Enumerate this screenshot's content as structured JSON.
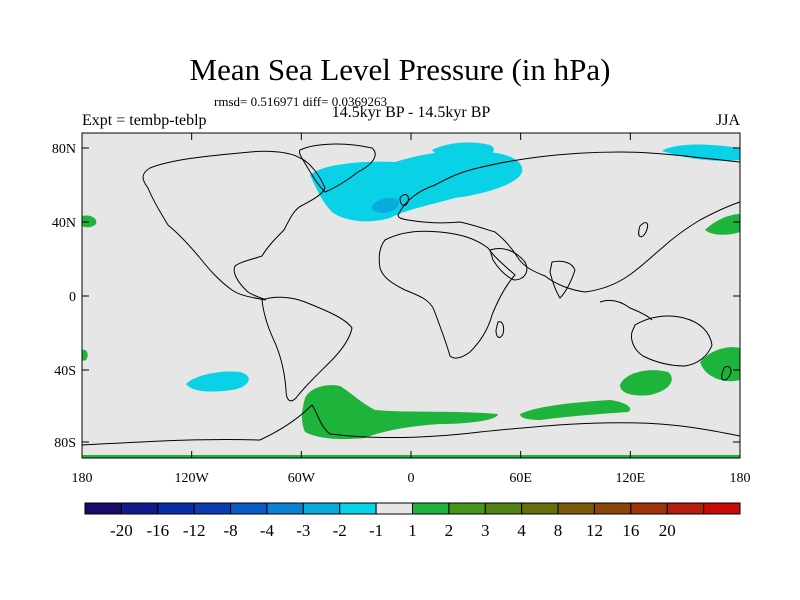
{
  "header": {
    "title": "Mean Sea Level Pressure (in hPa)",
    "stats": "rmsd= 0.516971 diff= 0.0369263",
    "subtitle": "14.5kyr BP - 14.5kyr BP",
    "experiment": "Expt = tembp-teblp",
    "season": "JJA"
  },
  "map": {
    "background_color": "#e6e6e6",
    "coast_color": "#000000",
    "y_ticks": [
      "80N",
      "40N",
      "0",
      "40S",
      "80S"
    ],
    "x_ticks": [
      "180",
      "120W",
      "60W",
      "0",
      "60E",
      "120E",
      "180"
    ]
  },
  "colorbar": {
    "colors": [
      "#1a0a6a",
      "#141a8c",
      "#0a2ca6",
      "#0a3cb4",
      "#0a5ac8",
      "#0a82d2",
      "#0aaadc",
      "#0ad2e6",
      "#e6e6e6",
      "#1eb43c",
      "#46961e",
      "#508214",
      "#646e0a",
      "#7a5a0a",
      "#8c460a",
      "#a0320a",
      "#b41e0a",
      "#c80a0a"
    ],
    "labels": [
      "-20",
      "-16",
      "-12",
      "-8",
      "-4",
      "-3",
      "-2",
      "-1",
      "1",
      "2",
      "3",
      "4",
      "8",
      "12",
      "16",
      "20"
    ]
  },
  "anomalies": {
    "negative_color": "#0ad2e6",
    "strong_negative_color": "#0aaadc",
    "positive_color": "#1eb43c"
  }
}
